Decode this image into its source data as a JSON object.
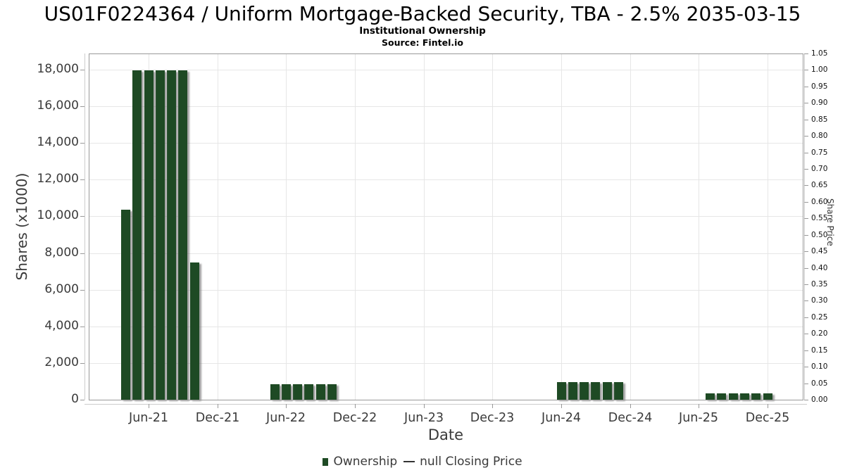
{
  "header": {
    "title": "US01F0224364 / Uniform Mortgage-Backed Security, TBA - 2.5% 2035-03-15",
    "subtitle": "Institutional Ownership",
    "source": "Source: Fintel.io"
  },
  "chart_data": {
    "type": "bar",
    "title": "US01F0224364 / Uniform Mortgage-Backed Security, TBA - 2.5% 2035-03-15",
    "subtitle": "Institutional Ownership",
    "source": "Source: Fintel.io",
    "xlabel": "Date",
    "ylabel_left": "Shares (x1000)",
    "ylabel_right": "Share Price",
    "grid": true,
    "legend_position": "bottom",
    "x_ticks": [
      "Jun-21",
      "Dec-21",
      "Jun-22",
      "Dec-22",
      "Jun-23",
      "Dec-23",
      "Jun-24",
      "Dec-24",
      "Jun-25",
      "Dec-25"
    ],
    "y_left_axis": {
      "min": 0,
      "max": 18000,
      "step": 2000,
      "tick_format": "thousands-comma"
    },
    "y_right_axis": {
      "min": 0.0,
      "max": 1.05,
      "step": 0.05,
      "tick_format": "2-decimals"
    },
    "series": [
      {
        "name": "Ownership",
        "type": "bar",
        "color": "#1e4a24",
        "points": [
          {
            "date": "2021-04",
            "value": 10350
          },
          {
            "date": "2021-05",
            "value": 17950
          },
          {
            "date": "2021-06",
            "value": 17950
          },
          {
            "date": "2021-07",
            "value": 17950
          },
          {
            "date": "2021-08",
            "value": 17950
          },
          {
            "date": "2021-09",
            "value": 17950
          },
          {
            "date": "2021-10",
            "value": 7500
          },
          {
            "date": "2022-05",
            "value": 850
          },
          {
            "date": "2022-06",
            "value": 850
          },
          {
            "date": "2022-07",
            "value": 850
          },
          {
            "date": "2022-08",
            "value": 850
          },
          {
            "date": "2022-09",
            "value": 850
          },
          {
            "date": "2022-10",
            "value": 850
          },
          {
            "date": "2024-06",
            "value": 950
          },
          {
            "date": "2024-07",
            "value": 950
          },
          {
            "date": "2024-08",
            "value": 950
          },
          {
            "date": "2024-09",
            "value": 950
          },
          {
            "date": "2024-10",
            "value": 950
          },
          {
            "date": "2024-11",
            "value": 950
          },
          {
            "date": "2025-07",
            "value": 350
          },
          {
            "date": "2025-08",
            "value": 350
          },
          {
            "date": "2025-09",
            "value": 350
          },
          {
            "date": "2025-10",
            "value": 350
          },
          {
            "date": "2025-11",
            "value": 350
          },
          {
            "date": "2025-12",
            "value": 350
          }
        ]
      },
      {
        "name": "null Closing Price",
        "type": "line",
        "color": "#333333",
        "points": []
      }
    ]
  },
  "colors": {
    "bar": "#1e4a24",
    "grid": "#e6e6e6",
    "plot_border": "#999999",
    "tick": "#999999",
    "label": "#3a3a3a"
  }
}
